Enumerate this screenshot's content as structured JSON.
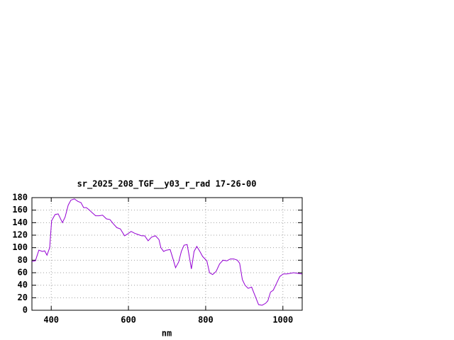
{
  "chart_data": {
    "type": "line",
    "title": "sr_2025_208_TGF__y03_r_rad 17-26-00",
    "x_label": "nm",
    "x": [
      350,
      359,
      368,
      377,
      383,
      389,
      396,
      401,
      410,
      418,
      429,
      436,
      444,
      451,
      460,
      469,
      477,
      484,
      491,
      499,
      506,
      515,
      524,
      533,
      543,
      552,
      561,
      570,
      579,
      590,
      598,
      607,
      616,
      625,
      634,
      642,
      651,
      660,
      670,
      679,
      684,
      691,
      698,
      708,
      715,
      722,
      730,
      737,
      744,
      752,
      757,
      763,
      770,
      777,
      785,
      792,
      803,
      810,
      818,
      827,
      836,
      845,
      855,
      864,
      873,
      882,
      888,
      895,
      902,
      910,
      919,
      928,
      937,
      946,
      955,
      961,
      968,
      975,
      982,
      992,
      1001,
      1010,
      1019,
      1028,
      1038,
      1049
    ],
    "series": [
      {
        "color": "#9400d3",
        "values": [
          78,
          79,
          96,
          94,
          95,
          88,
          100,
          143,
          153,
          154,
          140,
          149,
          168,
          176,
          178,
          174,
          172,
          164,
          164,
          160,
          156,
          151,
          151,
          152,
          146,
          145,
          138,
          132,
          130,
          119,
          122,
          126,
          123,
          121,
          119,
          119,
          111,
          117,
          119,
          113,
          100,
          94,
          96,
          97,
          83,
          68,
          77,
          94,
          104,
          105,
          88,
          66,
          94,
          102,
          94,
          86,
          79,
          60,
          57,
          62,
          74,
          80,
          79,
          82,
          82,
          80,
          75,
          49,
          40,
          35,
          37,
          23,
          9,
          8,
          11,
          15,
          29,
          32,
          41,
          54,
          58,
          58,
          59,
          60,
          59,
          58
        ]
      }
    ],
    "xlim": [
      350,
      1050
    ],
    "xticks": [
      400,
      600,
      800,
      1000
    ],
    "ylim": [
      0,
      180
    ],
    "yticks": [
      0,
      20,
      40,
      60,
      80,
      100,
      120,
      140,
      160,
      180
    ],
    "grid": true
  }
}
